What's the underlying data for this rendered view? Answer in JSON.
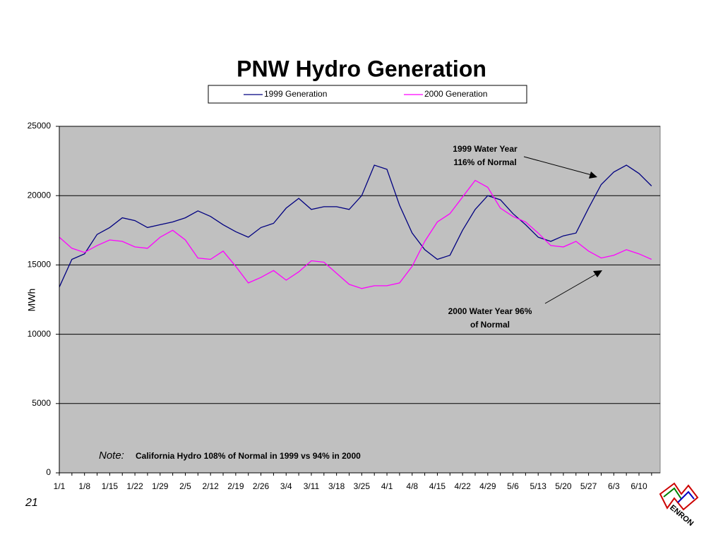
{
  "chart_data": {
    "type": "line",
    "title": "PNW Hydro Generation",
    "y_label": "MWh",
    "categories": [
      "1/1",
      null,
      "1/8",
      null,
      "1/15",
      null,
      "1/22",
      null,
      "1/29",
      null,
      "2/5",
      null,
      "2/12",
      null,
      "2/19",
      null,
      "2/26",
      null,
      "3/4",
      null,
      "3/11",
      null,
      "3/18",
      null,
      "3/25",
      null,
      "4/1",
      null,
      "4/8",
      null,
      "4/15",
      null,
      "4/22",
      null,
      "4/29",
      null,
      "5/6",
      null,
      "5/13",
      null,
      "5/20",
      null,
      "5/27",
      null,
      "6/3",
      null,
      "6/10",
      null
    ],
    "series": [
      {
        "name": "1999 Generation",
        "color": "#000080",
        "values": [
          13400,
          15400,
          15800,
          17200,
          17700,
          18400,
          18200,
          17700,
          17900,
          18100,
          18400,
          18900,
          18500,
          17900,
          17400,
          17000,
          17700,
          18000,
          19100,
          19800,
          19000,
          19200,
          19200,
          19000,
          20000,
          22200,
          21900,
          19300,
          17300,
          16100,
          15400,
          15700,
          17500,
          19000,
          20000,
          19700,
          18700,
          17900,
          17000,
          16700,
          17100,
          17300,
          19100,
          20800,
          21700,
          22200,
          21600,
          20700
        ]
      },
      {
        "name": "2000 Generation",
        "color": "#ff00ff",
        "values": [
          17000,
          16200,
          15900,
          16400,
          16800,
          16700,
          16300,
          16200,
          17000,
          17500,
          16800,
          15500,
          15400,
          16000,
          14900,
          13700,
          14100,
          14600,
          13900,
          14500,
          15300,
          15200,
          14400,
          13600,
          13300,
          13500,
          13500,
          13700,
          14900,
          16700,
          18100,
          18700,
          19900,
          21100,
          20600,
          19100,
          18500,
          18100,
          17300,
          16400,
          16300,
          16700,
          16000,
          15500,
          15700,
          16100,
          15800,
          15400
        ]
      }
    ],
    "ylim": [
      0,
      25000
    ],
    "yticks": [
      0,
      5000,
      10000,
      15000,
      20000,
      25000
    ],
    "grid": true,
    "legend": "top",
    "annotations": [
      {
        "lines": [
          "1999 Water Year",
          "116% of Normal"
        ]
      },
      {
        "lines": [
          "2000 Water Year 96%",
          "of Normal"
        ]
      }
    ],
    "note": {
      "label": "Note:",
      "text": "California Hydro 108% of Normal in 1999 vs 94% in 2000"
    }
  },
  "slide": {
    "page_number": "21",
    "logo": "ENRON"
  }
}
